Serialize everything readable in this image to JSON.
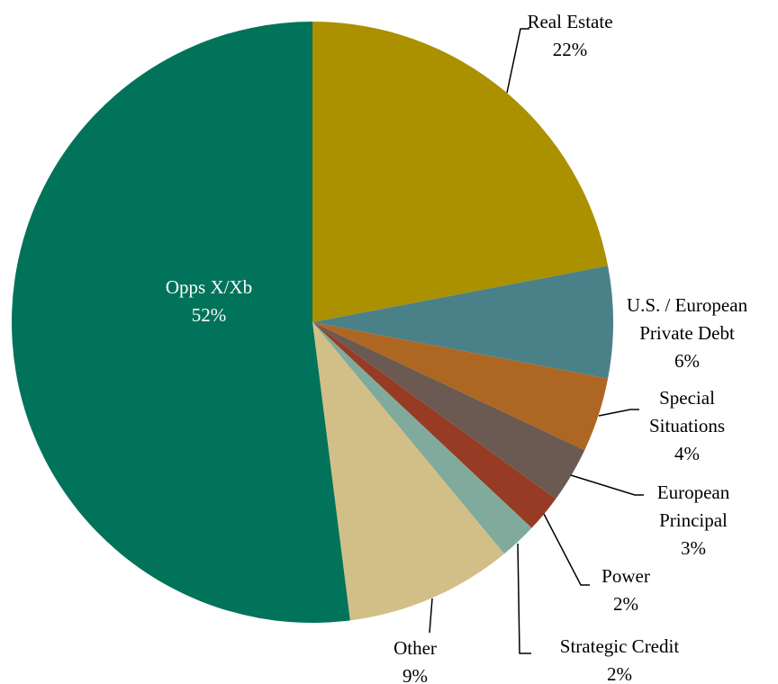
{
  "chart_data": {
    "type": "pie",
    "categories": [
      "Real Estate",
      "U.S. / European Private Debt",
      "Special Situations",
      "European Principal",
      "Power",
      "Strategic Credit",
      "Other",
      "Opps X/Xb"
    ],
    "values": [
      22,
      6,
      4,
      3,
      2,
      2,
      9,
      52
    ],
    "value_labels": [
      "22%",
      "6%",
      "4%",
      "3%",
      "2%",
      "2%",
      "9%",
      "52%"
    ],
    "colors": [
      "#ab9000",
      "#4a8189",
      "#ad6722",
      "#6b5a51",
      "#973b24",
      "#80ab9c",
      "#d2bf87",
      "#00735a"
    ]
  }
}
